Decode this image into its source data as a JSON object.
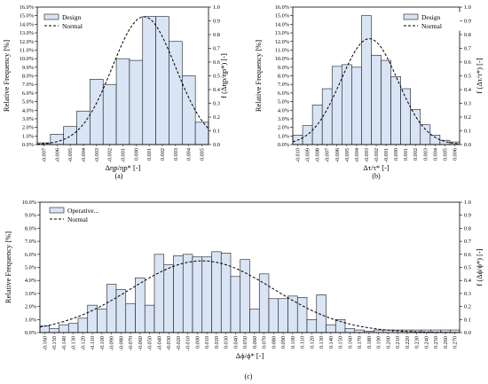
{
  "chart_data": [
    {
      "type": "bar",
      "panel_label": "(a)",
      "xlabel": "Δηp/ηp* [-]",
      "ylabel": "Relative Frequency [%]",
      "y2label": "f (Δηp/ηp*) [-]",
      "legend": [
        "Design",
        "Normal"
      ],
      "legend_position": "top-left",
      "ylim": [
        0,
        16
      ],
      "y2lim": [
        0,
        1.0
      ],
      "yticks": [
        "0.0%",
        "1.0%",
        "2.0%",
        "3.0%",
        "4.0%",
        "5.0%",
        "6.0%",
        "7.0%",
        "8.0%",
        "9.0%",
        "10.0%",
        "11.0%",
        "12.0%",
        "13.0%",
        "14.0%",
        "15.0%",
        "16.0%"
      ],
      "y2ticks": [
        "0.0",
        "0.1",
        "0.2",
        "0.3",
        "0.4",
        "0.5",
        "0.6",
        "0.7",
        "0.8",
        "0.9",
        "1.0"
      ],
      "categories": [
        "-0.007",
        "-0.006",
        "-0.005",
        "-0.004",
        "-0.003",
        "-0.002",
        "-0.001",
        "0.000",
        "0.001",
        "0.002",
        "0.003",
        "0.004",
        "0.005"
      ],
      "values": [
        0.2,
        1.2,
        2.1,
        3.9,
        7.6,
        7.0,
        10.0,
        9.8,
        14.9,
        14.9,
        12.0,
        8.0,
        2.6
      ],
      "normal_pdf": {
        "mean": 0.0006,
        "sd": 0.0024,
        "peak": 0.93
      },
      "grid": false
    },
    {
      "type": "bar",
      "panel_label": "(b)",
      "xlabel": "Δτ/τ* [-]",
      "ylabel": "Relative Frequency [%]",
      "y2label": "f (Δτ/τ*) [-]",
      "legend": [
        "Design",
        "Normal"
      ],
      "legend_position": "top-right",
      "ylim": [
        0,
        16
      ],
      "y2lim": [
        0,
        1.0
      ],
      "yticks": [
        "0.0%",
        "1.0%",
        "2.0%",
        "3.0%",
        "4.0%",
        "5.0%",
        "6.0%",
        "7.0%",
        "8.0%",
        "9.0%",
        "10.0%",
        "11.0%",
        "12.0%",
        "13.0%",
        "14.0%",
        "15.0%",
        "16.0%"
      ],
      "y2ticks": [
        "0.0",
        "0.1",
        "0.2",
        "0.3",
        "0.4",
        "0.5",
        "0.6",
        "0.7",
        "0.8",
        "0.9",
        "1.0"
      ],
      "categories": [
        "-0.010",
        "-0.009",
        "-0.008",
        "-0.007",
        "-0.006",
        "-0.005",
        "-0.004",
        "-0.003",
        "-0.002",
        "-0.001",
        "0.000",
        "0.001",
        "0.002",
        "0.003",
        "0.004",
        "0.005",
        "0.006"
      ],
      "values": [
        1.1,
        2.2,
        4.6,
        6.5,
        9.1,
        9.3,
        9.0,
        15.0,
        10.4,
        9.8,
        7.9,
        6.5,
        4.1,
        2.3,
        1.1,
        0.5,
        0.3
      ],
      "normal_pdf": {
        "mean": -0.0027,
        "sd": 0.0029,
        "peak": 0.77
      },
      "grid": false
    },
    {
      "type": "bar",
      "panel_label": "(c)",
      "xlabel": "Δϕ/ϕ* [-]",
      "ylabel": "Relative Frequency [%]",
      "y2label": "f (Δϕ/ϕ*) [-]",
      "legend": [
        "Operative...",
        "Normal"
      ],
      "legend_position": "top-left",
      "ylim": [
        0,
        10
      ],
      "y2lim": [
        0,
        1.0
      ],
      "yticks": [
        "0.0%",
        "1.0%",
        "2.0%",
        "3.0%",
        "4.0%",
        "5.0%",
        "6.0%",
        "7.0%",
        "8.0%",
        "9.0%",
        "10.0%"
      ],
      "y2ticks": [
        "0.0",
        "0.1",
        "0.2",
        "0.3",
        "0.4",
        "0.5",
        "0.6",
        "0.7",
        "0.8",
        "0.9",
        "1.0"
      ],
      "categories": [
        "-0.160",
        "-0.150",
        "-0.140",
        "-0.130",
        "-0.120",
        "-0.110",
        "-0.100",
        "-0.090",
        "-0.080",
        "-0.070",
        "-0.060",
        "-0.050",
        "-0.040",
        "-0.030",
        "-0.020",
        "-0.010",
        "0.000",
        "0.010",
        "0.020",
        "0.030",
        "0.040",
        "0.050",
        "0.060",
        "0.070",
        "0.080",
        "0.090",
        "0.100",
        "0.110",
        "0.120",
        "0.130",
        "0.140",
        "0.150",
        "0.160",
        "0.170",
        "0.180",
        "0.190",
        "0.200",
        "0.210",
        "0.220",
        "0.230",
        "0.240",
        "0.250",
        "0.260",
        "0.270"
      ],
      "values": [
        0.5,
        0.3,
        0.6,
        0.7,
        1.1,
        2.1,
        1.8,
        3.7,
        3.3,
        2.2,
        4.2,
        2.1,
        6.0,
        5.2,
        5.9,
        6.0,
        5.8,
        5.8,
        6.2,
        6.1,
        4.3,
        5.6,
        1.8,
        4.5,
        2.6,
        2.6,
        2.8,
        2.7,
        1.0,
        2.9,
        0.6,
        1.0,
        0.3,
        0.2,
        0.1,
        0.2,
        0.2,
        0.2,
        0.2,
        0.2,
        0.2,
        0.2,
        0.2,
        0.2
      ],
      "normal_pdf": {
        "mean": 0.005,
        "sd": 0.075,
        "peak": 0.55
      },
      "grid": false
    }
  ],
  "colors": {
    "bar_fill": "#d9e4f5",
    "bar_stroke": "#1a1a1a",
    "normal_line": "#000000",
    "axis": "#000000"
  }
}
